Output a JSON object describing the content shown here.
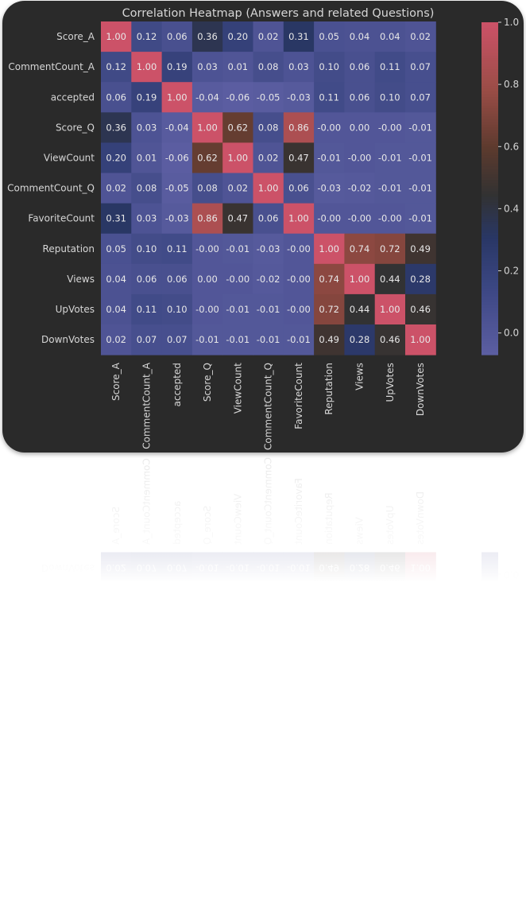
{
  "chart_data": {
    "type": "heatmap",
    "title": "Correlation Heatmap (Answers and related Questions)",
    "labels": [
      "Score_A",
      "CommentCount_A",
      "accepted",
      "Score_Q",
      "ViewCount",
      "CommentCount_Q",
      "FavoriteCount",
      "Reputation",
      "Views",
      "UpVotes",
      "DownVotes"
    ],
    "matrix": [
      [
        1.0,
        0.12,
        0.06,
        0.36,
        0.2,
        0.02,
        0.31,
        0.05,
        0.04,
        0.04,
        0.02
      ],
      [
        0.12,
        1.0,
        0.19,
        0.03,
        0.01,
        0.08,
        0.03,
        0.1,
        0.06,
        0.11,
        0.07
      ],
      [
        0.06,
        0.19,
        1.0,
        -0.04,
        -0.06,
        -0.05,
        -0.03,
        0.11,
        0.06,
        0.1,
        0.07
      ],
      [
        0.36,
        0.03,
        -0.04,
        1.0,
        0.62,
        0.08,
        0.86,
        -0.0,
        0.0,
        -0.0,
        -0.01
      ],
      [
        0.2,
        0.01,
        -0.06,
        0.62,
        1.0,
        0.02,
        0.47,
        -0.01,
        -0.0,
        -0.01,
        -0.01
      ],
      [
        0.02,
        0.08,
        -0.05,
        0.08,
        0.02,
        1.0,
        0.06,
        -0.03,
        -0.02,
        -0.01,
        -0.01
      ],
      [
        0.31,
        0.03,
        -0.03,
        0.86,
        0.47,
        0.06,
        1.0,
        -0.0,
        -0.0,
        -0.0,
        -0.01
      ],
      [
        0.05,
        0.1,
        0.11,
        -0.0,
        -0.01,
        -0.03,
        -0.0,
        1.0,
        0.74,
        0.72,
        0.49
      ],
      [
        0.04,
        0.06,
        0.06,
        0.0,
        -0.0,
        -0.02,
        -0.0,
        0.74,
        1.0,
        0.44,
        0.28
      ],
      [
        0.04,
        0.11,
        0.1,
        -0.0,
        -0.01,
        -0.01,
        -0.0,
        0.72,
        0.44,
        1.0,
        0.46
      ],
      [
        0.02,
        0.07,
        0.07,
        -0.01,
        -0.01,
        -0.01,
        -0.01,
        0.49,
        0.28,
        0.46,
        1.0
      ]
    ],
    "colorbar": {
      "min": -0.07,
      "max": 1.0,
      "ticks": [
        0.0,
        0.2,
        0.4,
        0.6,
        0.8,
        1.0
      ]
    },
    "colors": {
      "low": "#5a5c9e",
      "mid": "#2f3a5c",
      "dark": "#333333",
      "high": "#c9516a",
      "background": "#2a2a2a",
      "text": "#d6d6d6"
    }
  }
}
